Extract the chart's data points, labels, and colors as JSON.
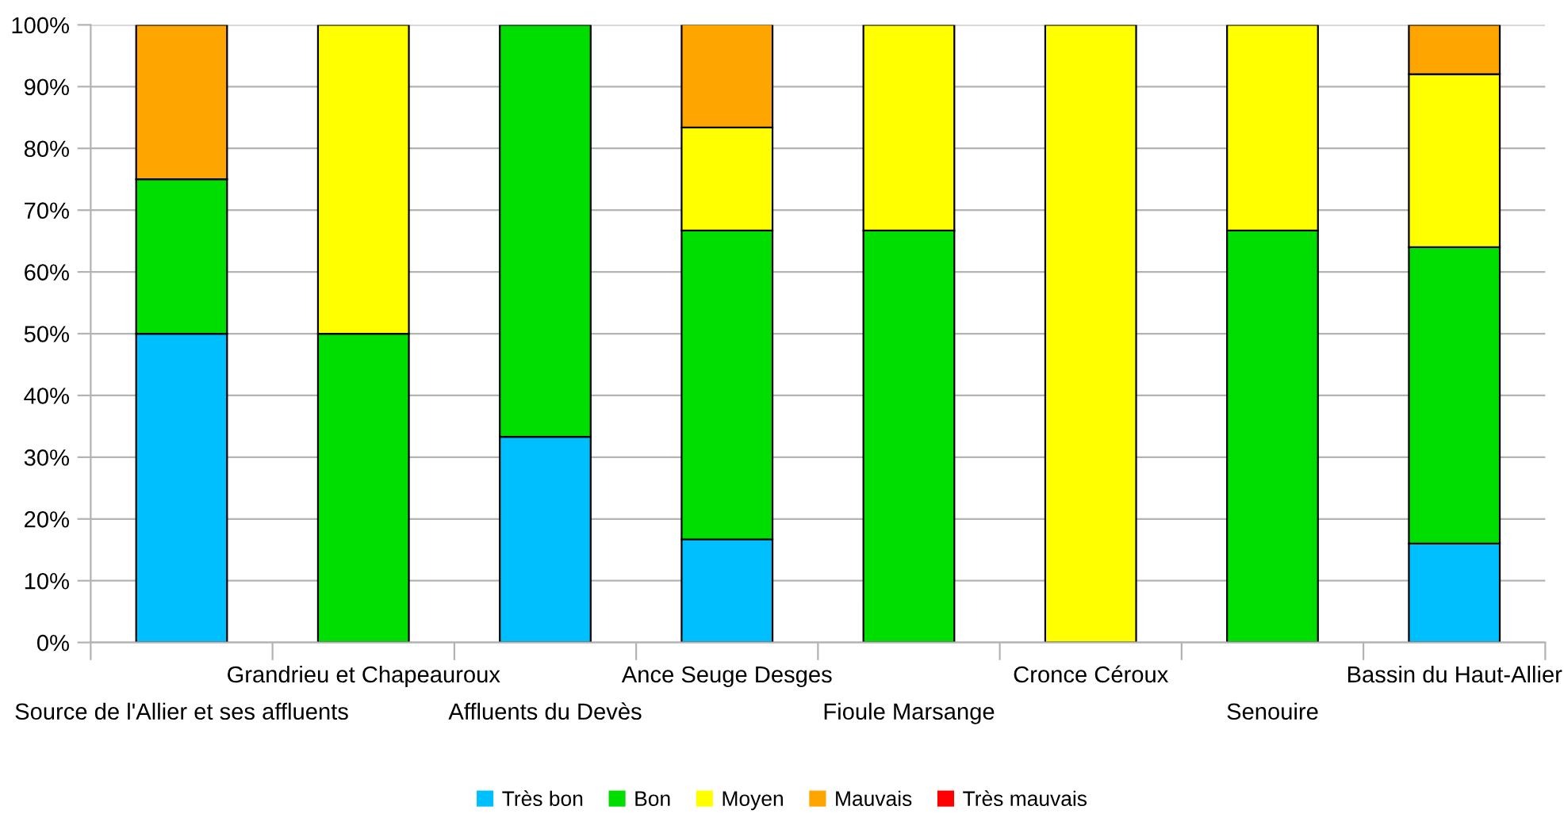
{
  "chart_data": {
    "type": "bar",
    "stacked": true,
    "categories": [
      "Source de l'Allier et ses affluents",
      "Grandrieu et Chapeauroux",
      "Affluents du Devès",
      "Ance Seuge Desges",
      "Fioule Marsange",
      "Cronce Céroux",
      "Senouire",
      "Bassin du Haut-Allier"
    ],
    "series": [
      {
        "name": "Très bon",
        "color": "#00bfff",
        "values": [
          50,
          0,
          33.3,
          16.7,
          0,
          0,
          0,
          16
        ]
      },
      {
        "name": "Bon",
        "color": "#00dd00",
        "values": [
          25,
          50,
          66.7,
          50,
          66.7,
          0,
          66.7,
          48
        ]
      },
      {
        "name": "Moyen",
        "color": "#ffff00",
        "values": [
          0,
          50,
          0,
          16.7,
          33.3,
          100,
          33.3,
          28
        ]
      },
      {
        "name": "Mauvais",
        "color": "#ffa500",
        "values": [
          25,
          0,
          0,
          16.7,
          0,
          0,
          0,
          8
        ]
      },
      {
        "name": "Très mauvais",
        "color": "#ff0000",
        "values": [
          0,
          0,
          0,
          0,
          0,
          0,
          0,
          0
        ]
      }
    ],
    "ylim": [
      0,
      100
    ],
    "yticks": [
      {
        "value": 0,
        "label": "0%"
      },
      {
        "value": 10,
        "label": "10%"
      },
      {
        "value": 20,
        "label": "20%"
      },
      {
        "value": 30,
        "label": "30%"
      },
      {
        "value": 40,
        "label": "40%"
      },
      {
        "value": 50,
        "label": "50%"
      },
      {
        "value": 60,
        "label": "60%"
      },
      {
        "value": 70,
        "label": "70%"
      },
      {
        "value": 80,
        "label": "80%"
      },
      {
        "value": 90,
        "label": "90%"
      },
      {
        "value": 100,
        "label": "100%"
      }
    ],
    "grid": "y",
    "legend": "bottom"
  }
}
